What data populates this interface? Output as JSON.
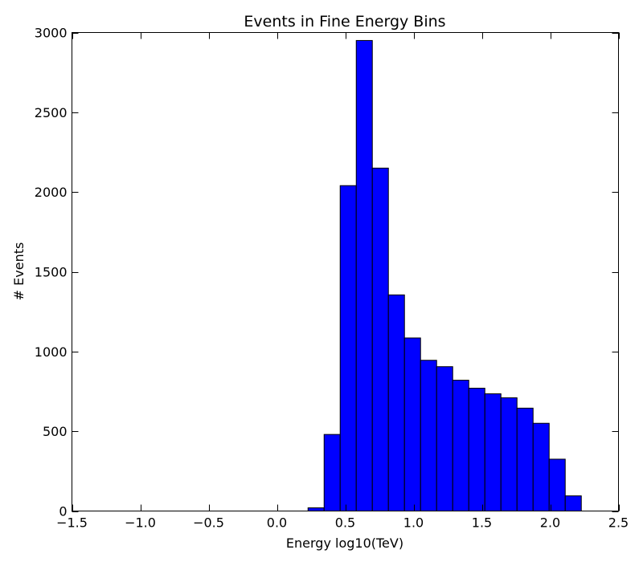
{
  "chart_data": {
    "type": "bar",
    "title": "Events in Fine Energy Bins",
    "xlabel": "Energy log10(TeV)",
    "ylabel": "# Events",
    "xlim": [
      -1.5,
      2.5
    ],
    "ylim": [
      0,
      3000
    ],
    "xticks": [
      -1.5,
      -1.0,
      -0.5,
      0.0,
      0.5,
      1.0,
      1.5,
      2.0,
      2.5
    ],
    "xtick_labels": [
      "−1.5",
      "−1.0",
      "−0.5",
      "0.0",
      "0.5",
      "1.0",
      "1.5",
      "2.0",
      "2.5"
    ],
    "yticks": [
      0,
      500,
      1000,
      1500,
      2000,
      2500,
      3000
    ],
    "ytick_labels": [
      "0",
      "500",
      "1000",
      "1500",
      "2000",
      "2500",
      "3000"
    ],
    "bin_width": 0.1176,
    "bins": [
      {
        "x": 0.2279,
        "value": 20
      },
      {
        "x": 0.3456,
        "value": 480
      },
      {
        "x": 0.4632,
        "value": 2040
      },
      {
        "x": 0.5809,
        "value": 2950
      },
      {
        "x": 0.6985,
        "value": 2150
      },
      {
        "x": 0.8162,
        "value": 1355
      },
      {
        "x": 0.9338,
        "value": 1085
      },
      {
        "x": 1.0515,
        "value": 945
      },
      {
        "x": 1.1691,
        "value": 905
      },
      {
        "x": 1.2868,
        "value": 820
      },
      {
        "x": 1.4044,
        "value": 770
      },
      {
        "x": 1.5221,
        "value": 735
      },
      {
        "x": 1.6397,
        "value": 710
      },
      {
        "x": 1.7574,
        "value": 645
      },
      {
        "x": 1.875,
        "value": 550
      },
      {
        "x": 1.9926,
        "value": 325
      },
      {
        "x": 2.1103,
        "value": 95
      }
    ],
    "grid": false,
    "bar_color": "#0000ff",
    "edge_color": "#000000"
  }
}
